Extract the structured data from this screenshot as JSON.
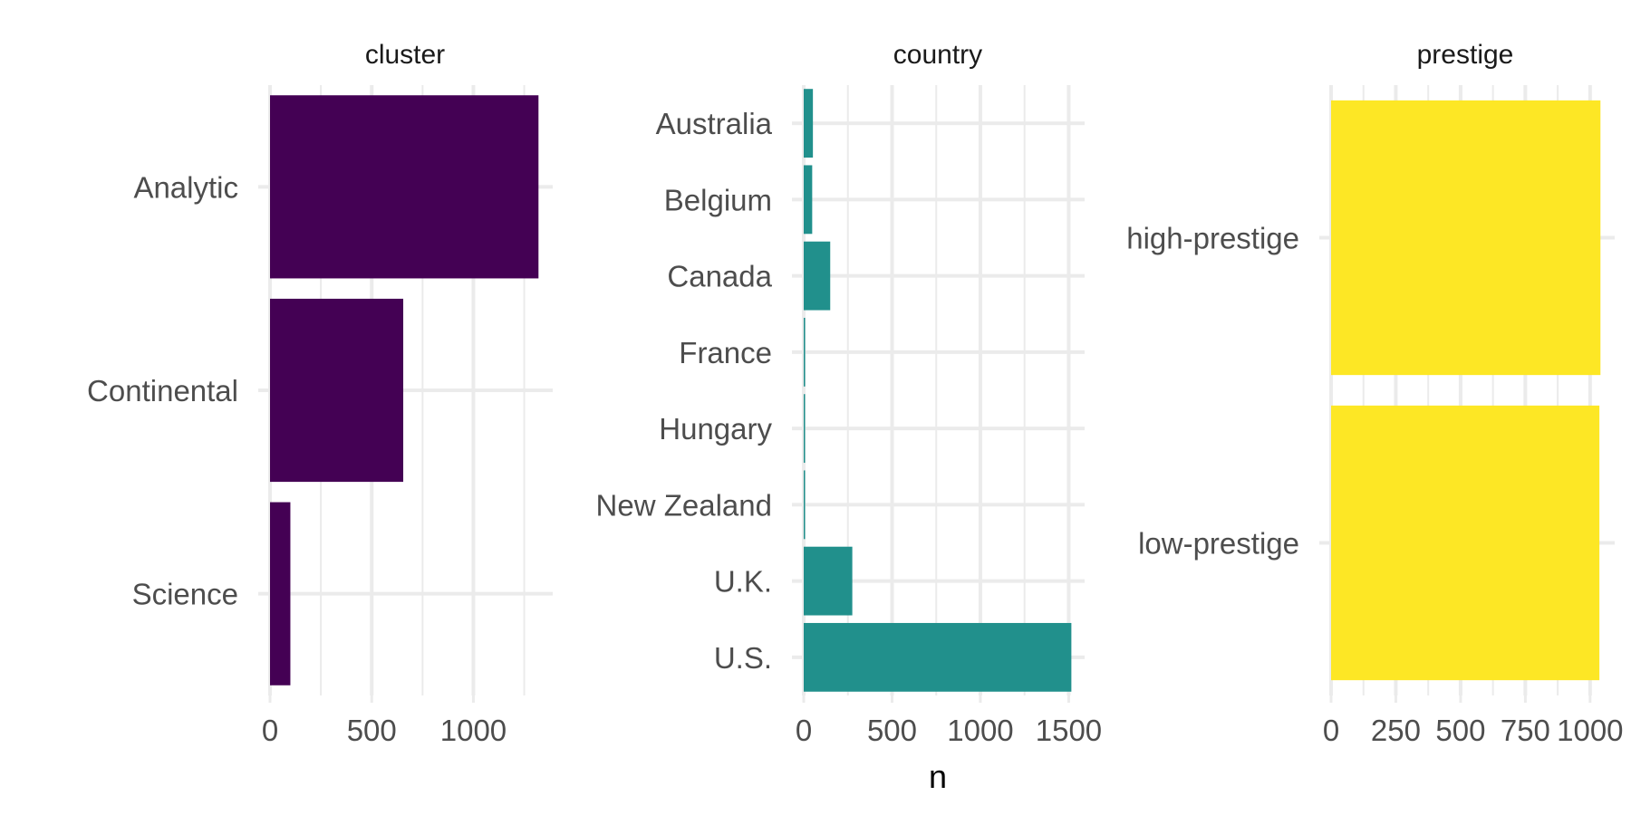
{
  "chart_data": {
    "type": "bar",
    "orientation": "horizontal",
    "xlabel": "n",
    "grid": true,
    "facets": [
      {
        "title": "cluster",
        "color": "#440154",
        "categories": [
          "Analytic",
          "Continental",
          "Science"
        ],
        "values": [
          1320,
          655,
          100
        ],
        "xlim": [
          0,
          1390
        ],
        "ticks": [
          0,
          500,
          1000
        ],
        "tick_labels": [
          "0",
          "500",
          "1000"
        ]
      },
      {
        "title": "country",
        "color": "#21908C",
        "categories": [
          "Australia",
          "Belgium",
          "Canada",
          "France",
          "Hungary",
          "New Zealand",
          "U.K.",
          "U.S."
        ],
        "values": [
          52,
          48,
          150,
          8,
          6,
          6,
          275,
          1515
        ],
        "xlim": [
          0,
          1590
        ],
        "ticks": [
          0,
          500,
          1000,
          1500
        ],
        "tick_labels": [
          "0",
          "500",
          "1000",
          "1500"
        ]
      },
      {
        "title": "prestige",
        "color": "#FDE725",
        "categories": [
          "high-prestige",
          "low-prestige"
        ],
        "values": [
          1040,
          1036
        ],
        "xlim": [
          0,
          1095
        ],
        "ticks": [
          0,
          250,
          500,
          750,
          1000
        ],
        "tick_labels": [
          "0",
          "250",
          "500",
          "750",
          "1000"
        ]
      }
    ]
  }
}
